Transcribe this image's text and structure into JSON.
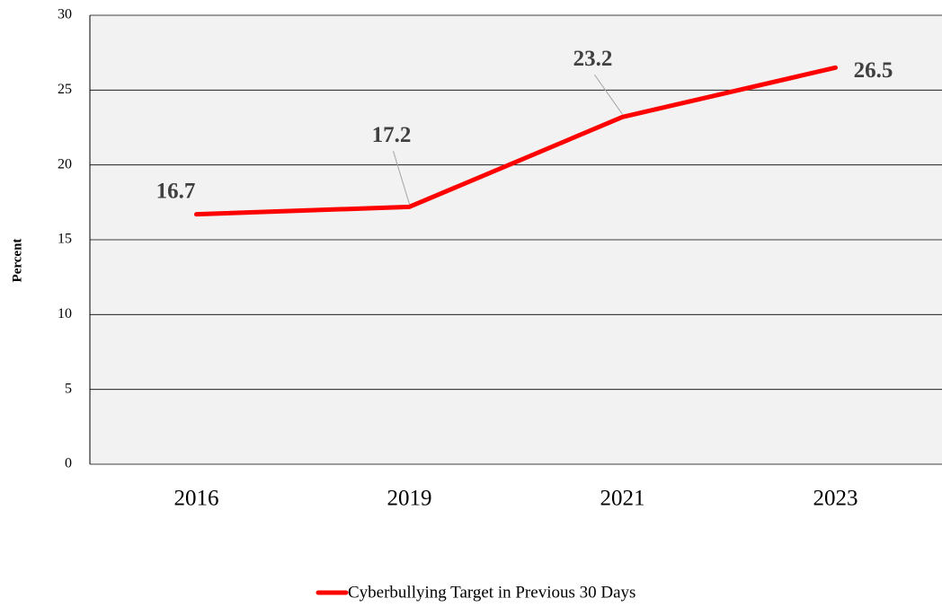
{
  "chart_data": {
    "type": "line",
    "categories": [
      "2016",
      "2019",
      "2021",
      "2023"
    ],
    "series": [
      {
        "name": "Cyberbullying Target in Previous 30 Days",
        "color": "#ff0000",
        "values": [
          16.7,
          17.2,
          23.2,
          26.5
        ]
      }
    ],
    "y_label": "Percent",
    "ylim": [
      0,
      30
    ],
    "yticks": [
      0,
      5,
      10,
      15,
      20,
      25,
      30
    ],
    "grid": true,
    "legend": "bottom"
  }
}
